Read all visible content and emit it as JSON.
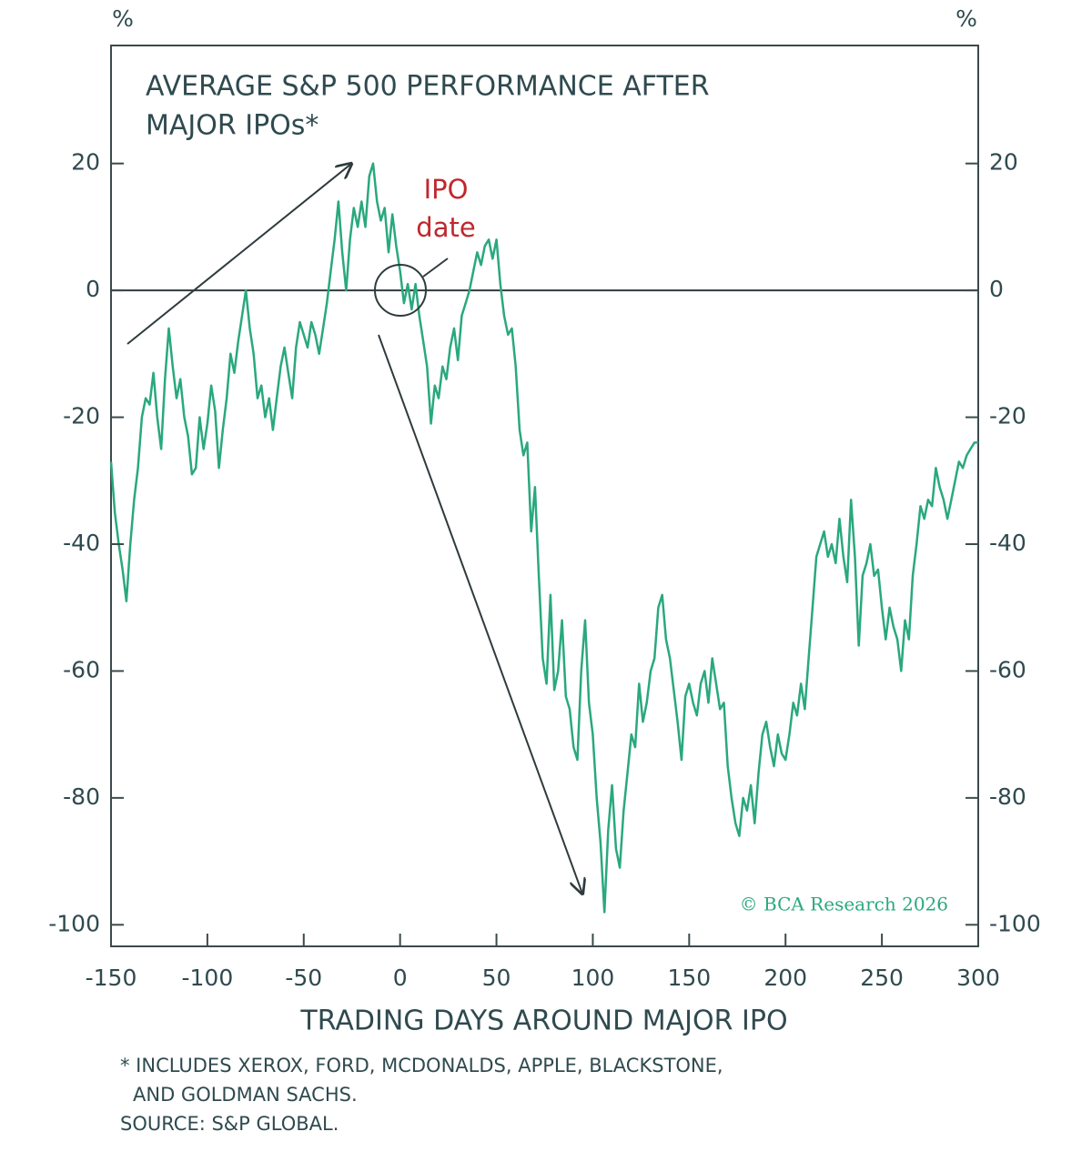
{
  "chart_data": {
    "type": "line",
    "title_lines": [
      "AVERAGE S&P 500 PERFORMANCE AFTER",
      "MAJOR IPOs*"
    ],
    "y_unit": "%",
    "y2_unit": "%",
    "x_label": "TRADING DAYS AROUND MAJOR IPO",
    "annotation": [
      "IPO",
      "date"
    ],
    "watermark": "© BCA Research 2026",
    "footnotes": [
      "* INCLUDES XEROX, FORD, MCDONALDS, APPLE, BLACKSTONE,",
      "AND GOLDMAN SACHS.",
      "SOURCE: S&P GLOBAL."
    ],
    "x": [
      -150,
      -148,
      -146,
      -144,
      -142,
      -140,
      -138,
      -136,
      -134,
      -132,
      -130,
      -128,
      -126,
      -124,
      -122,
      -120,
      -118,
      -116,
      -114,
      -112,
      -110,
      -108,
      -106,
      -104,
      -102,
      -100,
      -98,
      -96,
      -94,
      -92,
      -90,
      -88,
      -86,
      -84,
      -82,
      -80,
      -78,
      -76,
      -74,
      -72,
      -70,
      -68,
      -66,
      -64,
      -62,
      -60,
      -58,
      -56,
      -54,
      -52,
      -50,
      -48,
      -46,
      -44,
      -42,
      -40,
      -38,
      -36,
      -34,
      -32,
      -30,
      -28,
      -26,
      -24,
      -22,
      -20,
      -18,
      -16,
      -14,
      -12,
      -10,
      -8,
      -6,
      -4,
      -2,
      0,
      2,
      4,
      6,
      8,
      10,
      12,
      14,
      16,
      18,
      20,
      22,
      24,
      26,
      28,
      30,
      32,
      34,
      36,
      38,
      40,
      42,
      44,
      46,
      48,
      50,
      52,
      54,
      56,
      58,
      60,
      62,
      64,
      66,
      68,
      70,
      72,
      74,
      76,
      78,
      80,
      82,
      84,
      86,
      88,
      90,
      92,
      94,
      96,
      98,
      100,
      102,
      104,
      106,
      108,
      110,
      112,
      114,
      116,
      118,
      120,
      122,
      124,
      126,
      128,
      130,
      132,
      134,
      136,
      138,
      140,
      142,
      144,
      146,
      148,
      150,
      152,
      154,
      156,
      158,
      160,
      162,
      164,
      166,
      168,
      170,
      172,
      174,
      176,
      178,
      180,
      182,
      184,
      186,
      188,
      190,
      192,
      194,
      196,
      198,
      200,
      202,
      204,
      206,
      208,
      210,
      212,
      214,
      216,
      218,
      220,
      222,
      224,
      226,
      228,
      230,
      232,
      234,
      236,
      238,
      240,
      242,
      244,
      246,
      248,
      250,
      252,
      254,
      256,
      258,
      260,
      262,
      264,
      266,
      268,
      270,
      272,
      274,
      276,
      278,
      280,
      282,
      284,
      286,
      288,
      290,
      292,
      294,
      296,
      298,
      300
    ],
    "series": [
      {
        "color": "#2aa87e",
        "values": [
          -27,
          -35,
          -40,
          -44,
          -49,
          -40,
          -33,
          -28,
          -20,
          -17,
          -18,
          -13,
          -20,
          -25,
          -14,
          -6,
          -12,
          -17,
          -14,
          -20,
          -23,
          -29,
          -28,
          -20,
          -25,
          -21,
          -15,
          -19,
          -28,
          -22,
          -17,
          -10,
          -13,
          -8,
          -4,
          0,
          -6,
          -10,
          -17,
          -15,
          -20,
          -17,
          -22,
          -17,
          -12,
          -9,
          -13,
          -17,
          -9,
          -5,
          -7,
          -9,
          -5,
          -7,
          -10,
          -6,
          -2,
          3,
          8,
          14,
          6,
          0,
          8,
          13,
          10,
          14,
          10,
          18,
          20,
          14,
          11,
          13,
          6,
          12,
          7,
          3,
          -2,
          1,
          -3,
          1,
          -4,
          -8,
          -12,
          -21,
          -15,
          -17,
          -12,
          -14,
          -9,
          -6,
          -11,
          -4,
          -2,
          0,
          3,
          6,
          4,
          7,
          8,
          5,
          8,
          1,
          -4,
          -7,
          -6,
          -12,
          -22,
          -26,
          -24,
          -38,
          -31,
          -45,
          -58,
          -62,
          -48,
          -63,
          -60,
          -52,
          -64,
          -66,
          -72,
          -74,
          -60,
          -52,
          -65,
          -70,
          -80,
          -87,
          -98,
          -85,
          -78,
          -88,
          -91,
          -82,
          -76,
          -70,
          -72,
          -62,
          -68,
          -65,
          -60,
          -58,
          -50,
          -48,
          -55,
          -58,
          -63,
          -68,
          -74,
          -64,
          -62,
          -65,
          -67,
          -62,
          -60,
          -65,
          -58,
          -62,
          -66,
          -65,
          -75,
          -80,
          -84,
          -86,
          -80,
          -82,
          -78,
          -84,
          -76,
          -70,
          -68,
          -72,
          -75,
          -70,
          -73,
          -74,
          -70,
          -65,
          -67,
          -62,
          -66,
          -58,
          -50,
          -42,
          -40,
          -38,
          -42,
          -40,
          -43,
          -36,
          -42,
          -46,
          -33,
          -42,
          -56,
          -45,
          -43,
          -40,
          -45,
          -44,
          -50,
          -55,
          -50,
          -53,
          -55,
          -60,
          -52,
          -55,
          -45,
          -40,
          -34,
          -36,
          -33,
          -34,
          -28,
          -31,
          -33,
          -36,
          -33,
          -30,
          -27,
          -28,
          -26,
          -25,
          -24,
          -24
        ]
      }
    ],
    "xlim": [
      -150,
      300
    ],
    "xticks": [
      -150,
      -100,
      -50,
      0,
      50,
      100,
      150,
      200,
      250,
      300
    ],
    "ylim": [
      -103.4,
      38.6
    ],
    "yticks": [
      -100,
      -80,
      -60,
      -40,
      -20,
      0,
      20
    ],
    "y2lim": [
      -103.4,
      38.6
    ],
    "y2ticks": [
      -100,
      -80,
      -60,
      -40,
      -20,
      0,
      20
    ],
    "hline": 0,
    "grid": false
  }
}
